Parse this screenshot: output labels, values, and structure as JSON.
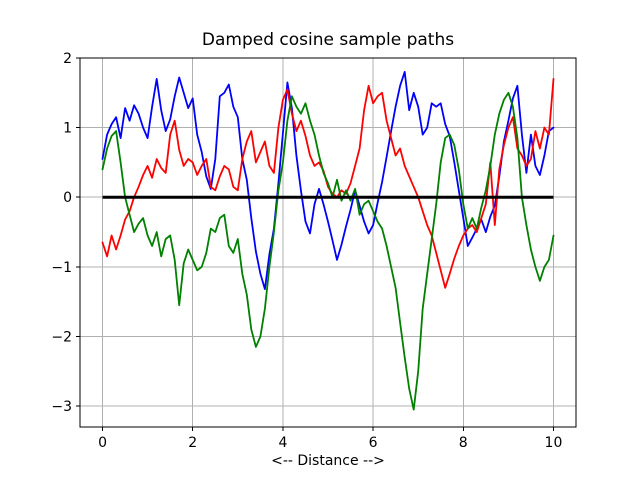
{
  "figure": {
    "background": "#ffffff",
    "spine_color": "#000000",
    "text_color": "#000000"
  },
  "chart_data": {
    "type": "line",
    "title": "Damped cosine sample paths",
    "xlabel": "<-- Distance -->",
    "ylabel": "",
    "xlim": [
      -0.5,
      10.5
    ],
    "ylim": [
      -3.3,
      2.0
    ],
    "xtick_values": [
      0,
      2,
      4,
      6,
      8,
      10
    ],
    "xtick_labels": [
      "0",
      "2",
      "4",
      "6",
      "8",
      "10"
    ],
    "ytick_values": [
      -3,
      -2,
      -1,
      0,
      1,
      2
    ],
    "ytick_labels": [
      "−3",
      "−2",
      "−1",
      "0",
      "1",
      "2"
    ],
    "grid": true,
    "grid_color": "#b0b0b0",
    "legend": "none",
    "x_start": 0,
    "x_step": 0.1,
    "series": [
      {
        "name": "sample-path-blue",
        "color": "#0000ff",
        "line_width": 1.8,
        "values": [
          0.55,
          0.9,
          1.05,
          1.15,
          0.85,
          1.28,
          1.1,
          1.32,
          1.2,
          1.0,
          0.85,
          1.3,
          1.7,
          1.25,
          0.95,
          1.12,
          1.45,
          1.72,
          1.5,
          1.28,
          1.42,
          0.9,
          0.65,
          0.3,
          0.12,
          0.55,
          1.45,
          1.5,
          1.62,
          1.3,
          1.15,
          0.55,
          0.25,
          -0.3,
          -0.78,
          -1.1,
          -1.32,
          -0.82,
          -0.45,
          0.2,
          0.92,
          1.65,
          1.28,
          0.6,
          0.1,
          -0.35,
          -0.52,
          -0.1,
          0.12,
          -0.1,
          -0.35,
          -0.62,
          -0.9,
          -0.68,
          -0.42,
          -0.18,
          0.1,
          -0.12,
          -0.35,
          -0.52,
          -0.4,
          -0.08,
          0.22,
          0.58,
          0.95,
          1.3,
          1.6,
          1.8,
          1.25,
          1.5,
          1.3,
          0.9,
          1.0,
          1.35,
          1.3,
          1.35,
          1.05,
          0.88,
          0.5,
          0.1,
          -0.3,
          -0.7,
          -0.58,
          -0.45,
          -0.32,
          -0.5,
          -0.28,
          -0.12,
          0.3,
          0.8,
          1.1,
          1.42,
          1.6,
          0.9,
          0.35,
          0.9,
          0.45,
          0.32,
          0.6,
          0.95,
          1.0
        ]
      },
      {
        "name": "sample-path-red",
        "color": "#ff0000",
        "line_width": 1.8,
        "values": [
          -0.65,
          -0.85,
          -0.55,
          -0.75,
          -0.55,
          -0.32,
          -0.2,
          0.0,
          0.15,
          0.32,
          0.45,
          0.28,
          0.55,
          0.42,
          0.35,
          0.9,
          1.1,
          0.68,
          0.45,
          0.55,
          0.5,
          0.32,
          0.45,
          0.55,
          0.15,
          0.1,
          0.3,
          0.45,
          0.4,
          0.15,
          0.1,
          0.55,
          0.8,
          0.95,
          0.5,
          0.65,
          0.8,
          0.45,
          0.35,
          1.0,
          1.4,
          1.55,
          1.2,
          0.95,
          1.1,
          0.88,
          0.6,
          0.45,
          0.5,
          0.38,
          0.15,
          0.05,
          0.0,
          0.1,
          0.05,
          0.2,
          0.45,
          0.7,
          1.25,
          1.6,
          1.35,
          1.45,
          1.5,
          1.1,
          0.85,
          0.6,
          0.7,
          0.45,
          0.3,
          0.15,
          0.0,
          -0.2,
          -0.4,
          -0.55,
          -0.8,
          -1.05,
          -1.3,
          -1.1,
          -0.88,
          -0.7,
          -0.55,
          -0.45,
          -0.4,
          -0.5,
          -0.3,
          -0.1,
          0.5,
          -0.4,
          0.4,
          0.75,
          1.0,
          1.15,
          0.7,
          0.6,
          0.45,
          0.55,
          0.95,
          0.7,
          1.0,
          0.9,
          1.7
        ]
      },
      {
        "name": "sample-path-green",
        "color": "#008000",
        "line_width": 1.8,
        "values": [
          0.4,
          0.7,
          0.88,
          0.95,
          0.5,
          0.0,
          -0.25,
          -0.5,
          -0.38,
          -0.3,
          -0.55,
          -0.7,
          -0.5,
          -0.85,
          -0.6,
          -0.55,
          -0.9,
          -1.55,
          -0.95,
          -0.75,
          -0.9,
          -1.05,
          -1.0,
          -0.8,
          -0.45,
          -0.5,
          -0.3,
          -0.25,
          -0.7,
          -0.8,
          -0.6,
          -1.1,
          -1.4,
          -1.9,
          -2.15,
          -2.0,
          -1.6,
          -1.0,
          -0.5,
          0.1,
          0.5,
          1.1,
          1.45,
          1.3,
          1.2,
          1.35,
          1.1,
          0.9,
          0.6,
          0.35,
          0.2,
          0.0,
          0.25,
          -0.05,
          0.1,
          -0.05,
          0.12,
          -0.25,
          -0.1,
          -0.05,
          -0.2,
          -0.35,
          -0.45,
          -0.7,
          -1.0,
          -1.3,
          -1.8,
          -2.3,
          -2.75,
          -3.05,
          -2.5,
          -1.6,
          -1.1,
          -0.6,
          -0.1,
          0.5,
          0.85,
          0.9,
          0.75,
          0.4,
          -0.1,
          -0.45,
          -0.3,
          -0.45,
          -0.15,
          0.1,
          0.45,
          0.9,
          1.2,
          1.4,
          1.5,
          1.3,
          0.85,
          0.0,
          -0.4,
          -0.75,
          -1.0,
          -1.2,
          -1.0,
          -0.9,
          -0.55
        ]
      }
    ],
    "reference_line": {
      "name": "zero-line",
      "y": 0,
      "x_from": 0,
      "x_to": 10,
      "color": "#000000",
      "line_width": 3
    }
  }
}
